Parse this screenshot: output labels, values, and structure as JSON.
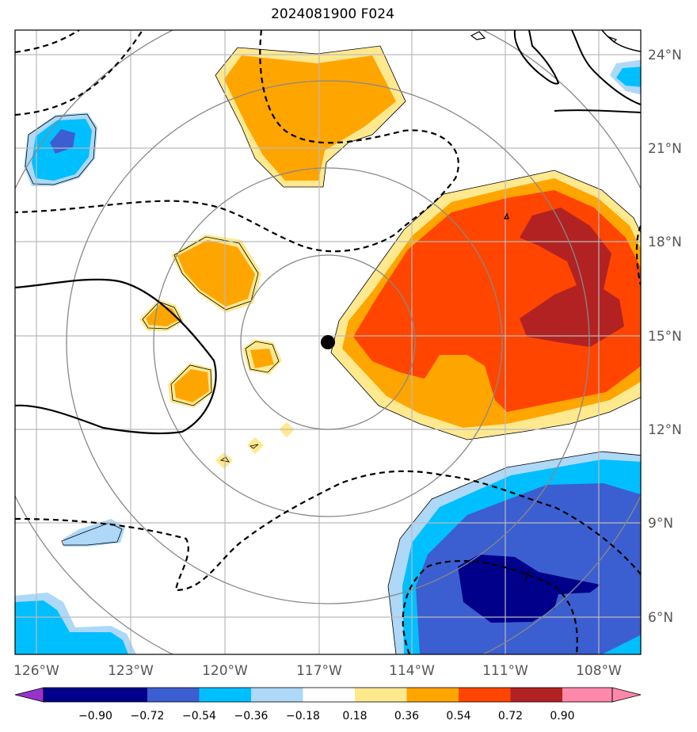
{
  "title": "2024081900 F024",
  "map": {
    "lon_range": [
      -127,
      -107
    ],
    "lat_range": [
      5,
      25
    ],
    "center": {
      "lon": -116.8,
      "lat": 14.8
    },
    "longitude_labels": [
      "126°W",
      "123°W",
      "120°W",
      "117°W",
      "114°W",
      "111°W",
      "108°W"
    ],
    "latitude_labels": [
      "24°N",
      "21°N",
      "18°N",
      "15°N",
      "12°N",
      "9°N",
      "6°N"
    ],
    "range_rings": 4,
    "colors": {
      "gridline": "#bbbbbb",
      "ring": "#888888",
      "contour": "#000000",
      "center_marker": "#000000"
    }
  },
  "colorbar": {
    "tick_labels": [
      "−0.90",
      "−0.72",
      "−0.54",
      "−0.36",
      "−0.18",
      "0.18",
      "0.36",
      "0.54",
      "0.72",
      "0.90"
    ],
    "colors": [
      "#9932cc",
      "#00008b",
      "#3b5fd0",
      "#00bfff",
      "#add8f7",
      "#ffffff",
      "#ffe98f",
      "#ffa500",
      "#ff4500",
      "#b22222",
      "#ff88aa"
    ]
  }
}
